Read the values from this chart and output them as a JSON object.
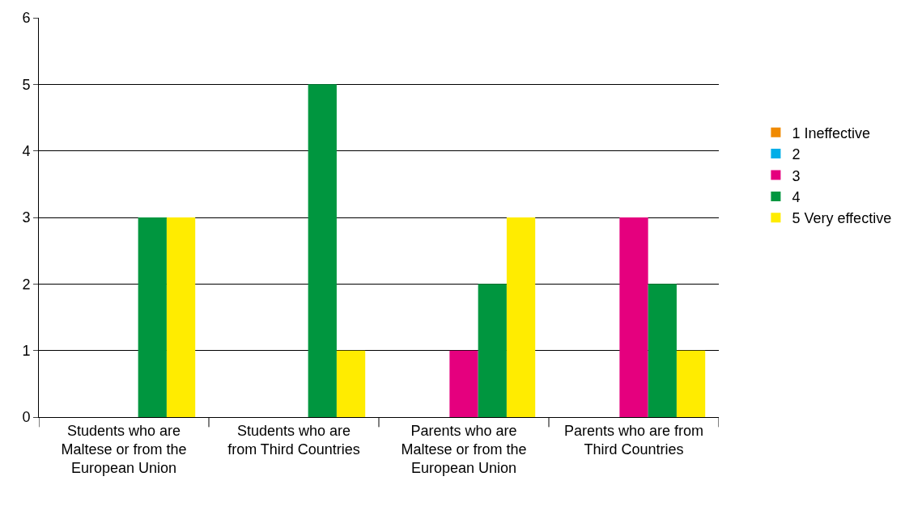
{
  "chart_data": {
    "type": "bar",
    "categories": [
      "Students who are Maltese or from the European Union",
      "Students who are from Third Countries",
      "Parents who are Maltese or from the European Union",
      "Parents who are from Third Countries"
    ],
    "series": [
      {
        "name": "1 Ineffective",
        "color": "#f08a00",
        "values": [
          0,
          0,
          0,
          0
        ]
      },
      {
        "name": "2",
        "color": "#00aee8",
        "values": [
          0,
          0,
          0,
          0
        ]
      },
      {
        "name": "3",
        "color": "#e5007e",
        "values": [
          0,
          0,
          1,
          3
        ]
      },
      {
        "name": "4",
        "color": "#00963f",
        "values": [
          3,
          5,
          2,
          2
        ]
      },
      {
        "name": "5 Very effective",
        "color": "#ffec00",
        "values": [
          3,
          1,
          3,
          1
        ]
      }
    ],
    "ylim": [
      0,
      6
    ],
    "yticks": [
      0,
      1,
      2,
      3,
      4,
      5,
      6
    ],
    "grid": "y",
    "legend": "right"
  }
}
